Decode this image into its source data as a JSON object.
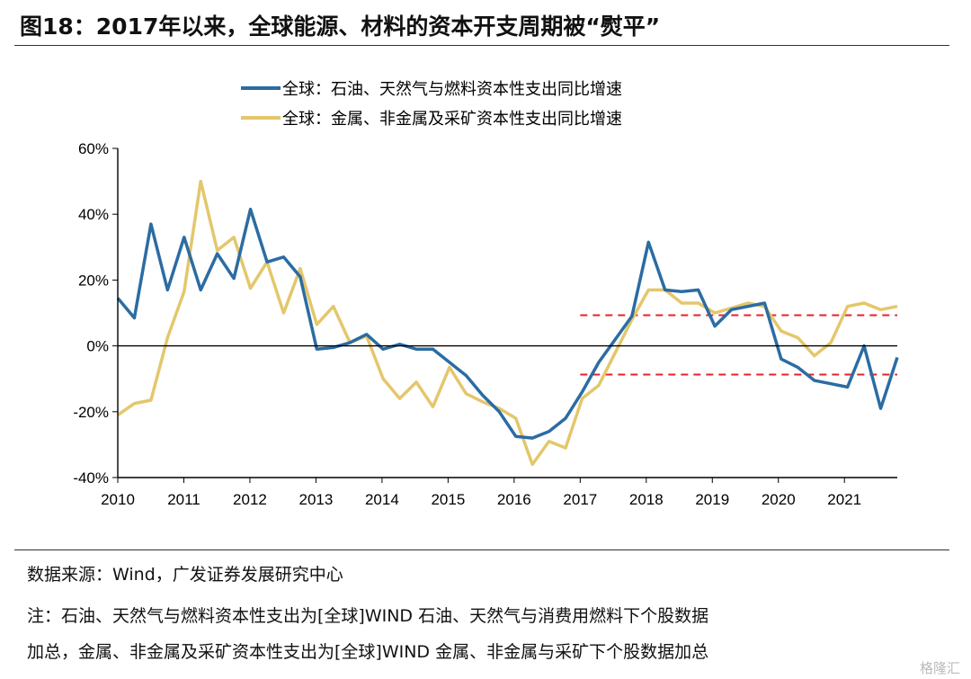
{
  "figure": {
    "title": "图18：2017年以来，全球能源、材料的资本开支周期被“熨平”"
  },
  "footer": {
    "source": "数据来源：Wind，广发证券发展研究中心",
    "note_line1": "注：石油、天然气与燃料资本性支出为[全球]WIND 石油、天然气与消费用燃料下个股数据",
    "note_line2": "加总，金属、非金属及采矿资本性支出为[全球]WIND 金属、非金属与采矿下个股数据加总",
    "watermark": "格隆汇"
  },
  "chart_data": {
    "type": "line",
    "x_ticks": [
      "2010",
      "2011",
      "2012",
      "2013",
      "2014",
      "2015",
      "2016",
      "2017",
      "2018",
      "2019",
      "2020",
      "2021"
    ],
    "y_ticks": [
      "-40%",
      "-20%",
      "0%",
      "20%",
      "40%",
      "60%"
    ],
    "ylim": [
      -40,
      60
    ],
    "y_unit": "%",
    "grid": false,
    "legend_position": "top",
    "colors": {
      "oil": "#2b6ca3",
      "metal": "#e3c76b",
      "threshold": "#e8202a",
      "axis": "#000000"
    },
    "thresholds": [
      9.3,
      -8.7
    ],
    "series": [
      {
        "name": "全球：石油、天然气与燃料资本性支出同比增速",
        "color": "#2b6ca3",
        "values": [
          14.5,
          8.5,
          37,
          17,
          33,
          17,
          28,
          20.5,
          41.5,
          25.5,
          27,
          21,
          -1,
          -0.5,
          1,
          3.5,
          -1,
          0.5,
          -1,
          -1,
          -5,
          -9,
          -15,
          -20,
          -27.5,
          -28,
          -26,
          -22,
          -14,
          -5,
          2,
          9,
          31.5,
          17,
          16.5,
          17,
          6,
          11,
          12,
          13,
          -4,
          -6.5,
          -10.5,
          -11.5,
          -12.5,
          0,
          -19,
          -3.5
        ]
      },
      {
        "name": "全球：金属、非金属及采矿资本性支出同比增速",
        "color": "#e3c76b",
        "values": [
          -21,
          -17.5,
          -16.5,
          2.5,
          16.5,
          50,
          29,
          33,
          17.5,
          25.5,
          10,
          23.5,
          6.5,
          12,
          1,
          3,
          -10,
          -16,
          -11,
          -18.5,
          -6.5,
          -14.5,
          -17,
          -19,
          -22,
          -36,
          -29,
          -31,
          -16,
          -12,
          -2,
          8,
          17,
          17,
          13,
          13,
          10,
          11.5,
          13,
          12,
          4.5,
          2.5,
          -3,
          1,
          12,
          13,
          11,
          12
        ]
      }
    ]
  }
}
